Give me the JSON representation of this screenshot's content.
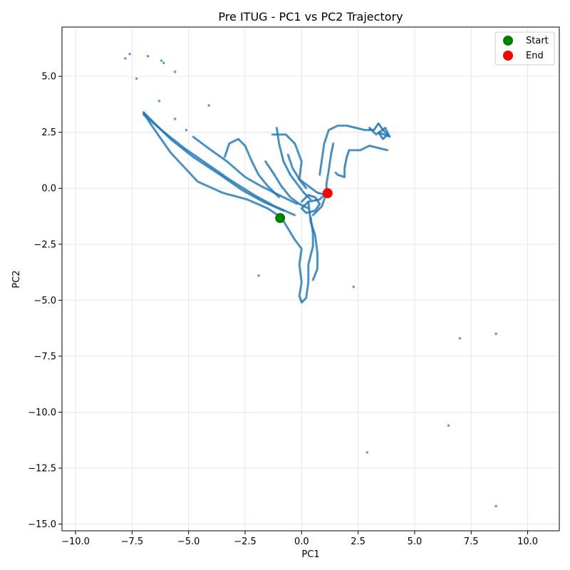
{
  "chart_data": {
    "type": "scatter",
    "title": "Pre ITUG - PC1 vs PC2 Trajectory",
    "xlabel": "PC1",
    "ylabel": "PC2",
    "xlim": [
      -10.6,
      11.4
    ],
    "ylim": [
      -15.3,
      7.2
    ],
    "xticks": [
      -10.0,
      -7.5,
      -5.0,
      -2.5,
      0.0,
      2.5,
      5.0,
      7.5,
      10.0
    ],
    "yticks": [
      -15.0,
      -12.5,
      -10.0,
      -7.5,
      -5.0,
      -2.5,
      0.0,
      2.5,
      5.0
    ],
    "xtick_labels": [
      "−10.0",
      "−7.5",
      "−5.0",
      "−2.5",
      "0.0",
      "2.5",
      "5.0",
      "7.5",
      "10.0"
    ],
    "ytick_labels": [
      "−15.0",
      "−12.5",
      "−10.0",
      "−7.5",
      "−5.0",
      "−2.5",
      "0.0",
      "2.5",
      "5.0"
    ],
    "grid": true,
    "legend_position": "top-right",
    "colors": {
      "trajectory": "#1f77b4",
      "start": "#008000",
      "end": "#ff0000"
    },
    "trajectory": {
      "paths": [
        [
          [
            -0.9,
            -1.3
          ],
          [
            -1.5,
            -0.9
          ],
          [
            -2.4,
            -0.5
          ],
          [
            -3.5,
            -0.2
          ],
          [
            -4.6,
            0.3
          ],
          [
            -5.8,
            1.6
          ],
          [
            -6.7,
            2.9
          ],
          [
            -7.0,
            3.4
          ],
          [
            -6.6,
            3.0
          ],
          [
            -5.8,
            2.2
          ],
          [
            -4.8,
            1.4
          ],
          [
            -3.6,
            0.6
          ],
          [
            -2.6,
            -0.1
          ],
          [
            -1.7,
            -0.6
          ],
          [
            -0.8,
            -1.0
          ]
        ],
        [
          [
            -7.0,
            3.3
          ],
          [
            -6.2,
            2.6
          ],
          [
            -5.2,
            1.8
          ],
          [
            -4.2,
            1.1
          ],
          [
            -3.2,
            0.4
          ],
          [
            -2.1,
            -0.3
          ],
          [
            -1.2,
            -0.8
          ],
          [
            -0.3,
            -1.2
          ]
        ],
        [
          [
            -4.8,
            2.3
          ],
          [
            -4.0,
            1.7
          ],
          [
            -3.3,
            1.2
          ],
          [
            -2.5,
            0.5
          ],
          [
            -1.8,
            0.1
          ],
          [
            -1.0,
            -0.3
          ],
          [
            -0.2,
            -0.7
          ]
        ],
        [
          [
            -3.4,
            1.4
          ],
          [
            -3.2,
            2.0
          ],
          [
            -2.8,
            2.2
          ],
          [
            -2.5,
            1.9
          ],
          [
            -2.2,
            1.2
          ],
          [
            -1.9,
            0.6
          ],
          [
            -1.5,
            0.1
          ],
          [
            -1.0,
            -0.4
          ]
        ],
        [
          [
            -1.6,
            1.2
          ],
          [
            -1.2,
            0.6
          ],
          [
            -0.9,
            0.1
          ],
          [
            -0.5,
            -0.4
          ],
          [
            -0.1,
            -0.7
          ],
          [
            0.3,
            -0.9
          ]
        ],
        [
          [
            -1.1,
            2.7
          ],
          [
            -1.0,
            2.0
          ],
          [
            -0.8,
            1.2
          ],
          [
            -0.5,
            0.6
          ],
          [
            -0.2,
            0.2
          ],
          [
            0.1,
            -0.2
          ],
          [
            0.4,
            -0.5
          ]
        ],
        [
          [
            -1.3,
            2.4
          ],
          [
            -0.7,
            2.4
          ],
          [
            -0.3,
            2.0
          ],
          [
            0.0,
            1.2
          ],
          [
            -0.1,
            0.4
          ],
          [
            0.2,
            0.0
          ]
        ],
        [
          [
            -0.6,
            1.5
          ],
          [
            -0.4,
            0.9
          ],
          [
            -0.1,
            0.4
          ],
          [
            0.3,
            0.1
          ],
          [
            0.7,
            -0.2
          ],
          [
            1.1,
            -0.3
          ]
        ],
        [
          [
            -0.9,
            -1.3
          ],
          [
            -0.6,
            -1.8
          ],
          [
            -0.3,
            -2.3
          ],
          [
            0.0,
            -2.7
          ],
          [
            -0.1,
            -3.4
          ],
          [
            0.0,
            -4.2
          ],
          [
            -0.1,
            -4.8
          ],
          [
            0.0,
            -5.1
          ],
          [
            0.2,
            -4.9
          ],
          [
            0.3,
            -4.2
          ],
          [
            0.3,
            -3.4
          ],
          [
            0.5,
            -2.6
          ],
          [
            0.5,
            -2.0
          ],
          [
            0.4,
            -1.3
          ]
        ],
        [
          [
            0.3,
            -0.6
          ],
          [
            0.4,
            -1.5
          ],
          [
            0.6,
            -2.1
          ],
          [
            0.7,
            -2.9
          ],
          [
            0.7,
            -3.6
          ],
          [
            0.5,
            -4.1
          ]
        ],
        [
          [
            0.0,
            -0.6
          ],
          [
            0.3,
            -0.3
          ],
          [
            0.6,
            -0.4
          ],
          [
            0.8,
            -0.7
          ],
          [
            0.6,
            -1.0
          ],
          [
            0.2,
            -1.1
          ],
          [
            0.0,
            -0.9
          ],
          [
            0.3,
            -0.6
          ],
          [
            0.8,
            -0.5
          ],
          [
            1.1,
            -0.2
          ],
          [
            0.9,
            -0.8
          ],
          [
            0.5,
            -1.2
          ]
        ],
        [
          [
            0.8,
            0.6
          ],
          [
            0.9,
            1.3
          ],
          [
            1.0,
            2.0
          ],
          [
            1.2,
            2.6
          ],
          [
            1.6,
            2.8
          ],
          [
            2.0,
            2.8
          ],
          [
            2.4,
            2.7
          ],
          [
            2.8,
            2.6
          ],
          [
            3.2,
            2.6
          ],
          [
            3.4,
            2.9
          ],
          [
            3.6,
            2.6
          ],
          [
            3.8,
            2.4
          ],
          [
            3.6,
            2.2
          ],
          [
            3.4,
            2.5
          ],
          [
            3.9,
            2.3
          ],
          [
            3.7,
            2.7
          ],
          [
            3.3,
            2.4
          ],
          [
            3.0,
            2.7
          ]
        ],
        [
          [
            3.8,
            1.7
          ],
          [
            3.4,
            1.8
          ],
          [
            3.0,
            1.9
          ],
          [
            2.6,
            1.7
          ],
          [
            2.1,
            1.7
          ],
          [
            2.0,
            1.4
          ],
          [
            1.9,
            0.9
          ],
          [
            1.9,
            0.5
          ],
          [
            1.6,
            0.6
          ],
          [
            1.5,
            0.7
          ]
        ],
        [
          [
            1.1,
            -0.3
          ],
          [
            1.1,
            0.2
          ],
          [
            1.2,
            0.8
          ],
          [
            1.3,
            1.5
          ],
          [
            1.4,
            2.0
          ]
        ]
      ],
      "outliers": [
        [
          -7.8,
          5.8
        ],
        [
          -7.6,
          6.0
        ],
        [
          -7.3,
          4.9
        ],
        [
          -6.8,
          5.9
        ],
        [
          -6.2,
          5.7
        ],
        [
          -6.1,
          5.6
        ],
        [
          -5.6,
          5.2
        ],
        [
          -6.3,
          3.9
        ],
        [
          -5.6,
          3.1
        ],
        [
          -4.1,
          3.7
        ],
        [
          -5.1,
          2.6
        ],
        [
          -1.9,
          -3.9
        ],
        [
          2.3,
          -4.4
        ],
        [
          7.0,
          -6.7
        ],
        [
          8.6,
          -6.5
        ],
        [
          6.5,
          -10.6
        ],
        [
          2.9,
          -11.8
        ],
        [
          8.6,
          -14.2
        ]
      ]
    },
    "markers": [
      {
        "name": "Start",
        "x": -0.95,
        "y": -1.33
      },
      {
        "name": "End",
        "x": 1.15,
        "y": -0.22
      }
    ]
  }
}
